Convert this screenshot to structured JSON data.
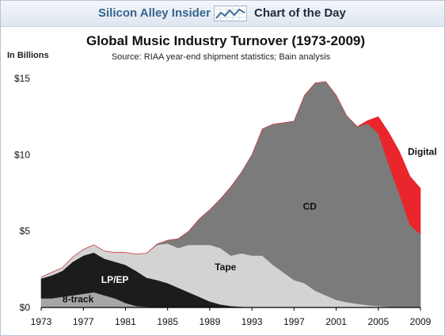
{
  "banner": {
    "brand": "Silicon Alley Insider",
    "section": "Chart of the Day",
    "icon": "line-chart-icon"
  },
  "colors": {
    "eight_track": "#a6a6a6",
    "lp_ep": "#1c1c1c",
    "tape": "#d3d3d3",
    "cd": "#7b7b7b",
    "digital": "#e8262c",
    "brand": "#35648f"
  },
  "chart_data": {
    "type": "area",
    "stacked": true,
    "title": "Global Music Industry Turnover (1973-2009)",
    "subtitle": "Source: RIAA year-end shipment statistics; Bain analysis",
    "ylabel": "In Billions",
    "xlim": [
      1973,
      2009
    ],
    "ylim": [
      0,
      15
    ],
    "x_ticks": [
      "1973",
      "1977",
      "1981",
      "1985",
      "1989",
      "1993",
      "1997",
      "2001",
      "2005",
      "2009"
    ],
    "y_ticks": [
      "$0",
      "$5",
      "$10",
      "$15"
    ],
    "grid": false,
    "legend": "none",
    "x": [
      1973,
      1974,
      1975,
      1976,
      1977,
      1978,
      1979,
      1980,
      1981,
      1982,
      1983,
      1984,
      1985,
      1986,
      1987,
      1988,
      1989,
      1990,
      1991,
      1992,
      1993,
      1994,
      1995,
      1996,
      1997,
      1998,
      1999,
      2000,
      2001,
      2002,
      2003,
      2004,
      2005,
      2006,
      2007,
      2008,
      2009
    ],
    "series": [
      {
        "name": "8-track",
        "label_pos": [
          1976.5,
          0.35
        ],
        "values": [
          0.6,
          0.6,
          0.7,
          0.8,
          0.9,
          1.0,
          0.8,
          0.6,
          0.3,
          0.1,
          0.05,
          0,
          0,
          0,
          0,
          0,
          0,
          0,
          0,
          0,
          0,
          0,
          0,
          0,
          0,
          0,
          0,
          0,
          0,
          0,
          0,
          0,
          0,
          0,
          0,
          0,
          0
        ]
      },
      {
        "name": "LP/EP",
        "label_pos": [
          1980,
          1.6
        ],
        "values": [
          1.3,
          1.5,
          1.7,
          2.2,
          2.5,
          2.6,
          2.4,
          2.4,
          2.5,
          2.3,
          1.9,
          1.8,
          1.6,
          1.3,
          1.0,
          0.7,
          0.4,
          0.2,
          0.1,
          0.05,
          0,
          0,
          0,
          0,
          0,
          0,
          0,
          0,
          0,
          0,
          0,
          0,
          0,
          0,
          0,
          0,
          0
        ]
      },
      {
        "name": "Tape",
        "label_pos": [
          1990.5,
          2.45
        ],
        "values": [
          0.1,
          0.2,
          0.2,
          0.3,
          0.4,
          0.5,
          0.5,
          0.6,
          0.8,
          1.1,
          1.6,
          2.3,
          2.6,
          2.6,
          3.1,
          3.4,
          3.7,
          3.7,
          3.3,
          3.5,
          3.4,
          3.4,
          2.8,
          2.3,
          1.8,
          1.6,
          1.1,
          0.8,
          0.5,
          0.35,
          0.25,
          0.15,
          0.1,
          0.05,
          0.02,
          0,
          0
        ]
      },
      {
        "name": "CD",
        "label_pos": [
          1998.5,
          6.4
        ],
        "values": [
          0,
          0,
          0,
          0,
          0,
          0,
          0,
          0,
          0,
          0,
          0,
          0.05,
          0.2,
          0.6,
          0.9,
          1.7,
          2.3,
          3.2,
          4.5,
          5.3,
          6.6,
          8.3,
          9.2,
          9.8,
          10.4,
          12.3,
          13.6,
          14.0,
          13.4,
          12.2,
          11.6,
          11.9,
          11.3,
          9.3,
          7.4,
          5.4,
          4.8
        ]
      },
      {
        "name": "Digital",
        "label_pos": [
          2007.8,
          10.0
        ],
        "values": [
          0,
          0,
          0,
          0,
          0,
          0,
          0,
          0,
          0,
          0,
          0,
          0,
          0,
          0,
          0,
          0,
          0,
          0,
          0,
          0,
          0,
          0,
          0,
          0,
          0,
          0,
          0,
          0,
          0,
          0,
          0,
          0.2,
          1.1,
          2.1,
          2.8,
          3.2,
          3.0
        ]
      }
    ]
  }
}
